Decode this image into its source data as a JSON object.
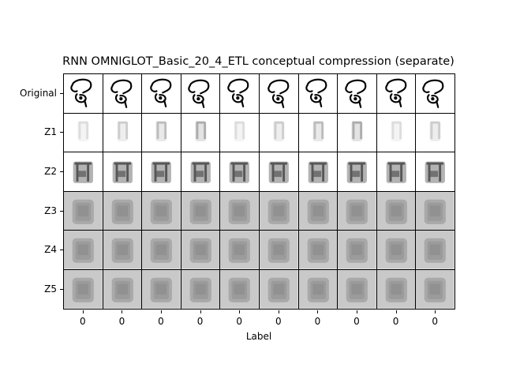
{
  "chart_data": {
    "type": "image-grid",
    "title": "RNN OMNIGLOT_Basic_20_4_ETL conceptual compression (separate)",
    "xlabel": "Label",
    "ylabel": "",
    "rows": [
      "Original",
      "Z1",
      "Z2",
      "Z3",
      "Z4",
      "Z5"
    ],
    "columns": [
      "0",
      "0",
      "0",
      "0",
      "0",
      "0",
      "0",
      "0",
      "0",
      "0"
    ],
    "row_styles": {
      "Original": "glyph",
      "Z1": "faint-blob",
      "Z2": "dark-blob",
      "Z3": "gray-tile",
      "Z4": "gray-tile",
      "Z5": "gray-tile"
    },
    "colors": {
      "ink": "#000000",
      "tile_gray": "#c9c9c9",
      "blob_dark": "#3a3a3a"
    }
  }
}
